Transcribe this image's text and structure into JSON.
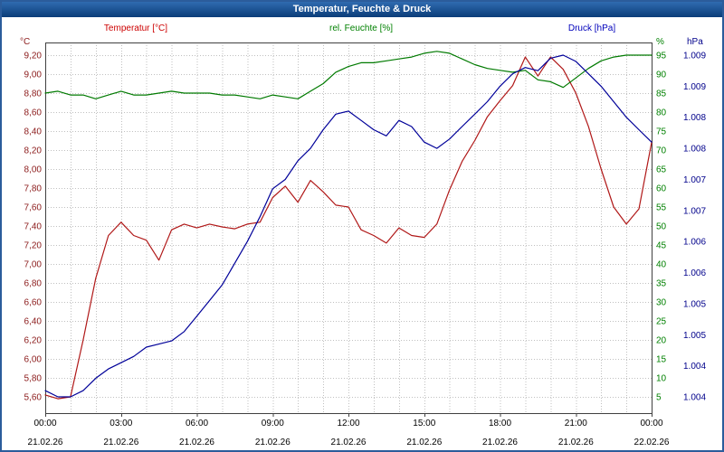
{
  "window": {
    "title": "Temperatur, Feuchte & Druck"
  },
  "legend": [
    {
      "label": "Temperatur [°C]",
      "color": "#cc0000"
    },
    {
      "label": "rel. Feuchte [%]",
      "color": "#008000"
    },
    {
      "label": "Druck [hPa]",
      "color": "#0000bb"
    }
  ],
  "chart_data": {
    "type": "line",
    "title": "Temperatur, Feuchte & Druck",
    "x_hours_step": 0.5,
    "x_range_hours": [
      0,
      24
    ],
    "grid": {
      "vertical_every_hours": 1,
      "horizontal_every_degC": 0.2,
      "style": "dotted"
    },
    "x_tick_labels": [
      "00:00",
      "03:00",
      "06:00",
      "09:00",
      "12:00",
      "15:00",
      "18:00",
      "21:00",
      "00:00"
    ],
    "x_date_labels": [
      "21.02.26",
      "21.02.26",
      "21.02.26",
      "21.02.26",
      "21.02.26",
      "21.02.26",
      "21.02.26",
      "21.02.26",
      "22.02.26"
    ],
    "axes": {
      "temp": {
        "unit": "°C",
        "side": "left",
        "top": 9.2,
        "bottom": 5.6,
        "color": "#8b1a1a",
        "tick_labels": [
          "9,20",
          "9,00",
          "8,80",
          "8,60",
          "8,40",
          "8,20",
          "8,00",
          "7,80",
          "7,60",
          "7,40",
          "7,20",
          "7,00",
          "6,80",
          "6,60",
          "6,40",
          "6,20",
          "6,00",
          "5,80",
          "5,60"
        ]
      },
      "hum": {
        "unit": "%",
        "side": "right-inner",
        "top": 95,
        "bottom": 5,
        "color": "#008000",
        "tick_labels": [
          "95",
          "90",
          "85",
          "80",
          "75",
          "70",
          "65",
          "60",
          "55",
          "50",
          "45",
          "40",
          "35",
          "30",
          "25",
          "20",
          "15",
          "10",
          "5"
        ]
      },
      "hpa": {
        "unit": "hPa",
        "side": "right-outer",
        "top": 1009.5,
        "bottom": 1004.0,
        "color": "#00008b",
        "tick_labels": [
          "1.009",
          "1.009",
          "1.008",
          "1.008",
          "1.007",
          "1.007",
          "1.006",
          "1.006",
          "1.005",
          "1.005",
          "1.004",
          "1.004"
        ]
      }
    },
    "series": [
      {
        "name": "Temperatur [°C]",
        "axis": "temp",
        "color": "#b01818",
        "values": [
          5.62,
          5.58,
          5.6,
          6.2,
          6.85,
          7.3,
          7.44,
          7.3,
          7.25,
          7.04,
          7.36,
          7.42,
          7.38,
          7.42,
          7.39,
          7.37,
          7.42,
          7.44,
          7.7,
          7.82,
          7.65,
          7.88,
          7.76,
          7.62,
          7.6,
          7.36,
          7.3,
          7.22,
          7.38,
          7.3,
          7.28,
          7.42,
          7.78,
          8.08,
          8.3,
          8.55,
          8.72,
          8.88,
          9.18,
          8.98,
          9.18,
          9.05,
          8.8,
          8.45,
          8.0,
          7.6,
          7.42,
          7.58,
          8.28
        ]
      },
      {
        "name": "rel. Feuchte [%]",
        "axis": "hum",
        "color": "#007a00",
        "values": [
          85.0,
          85.5,
          84.5,
          84.5,
          83.5,
          84.5,
          85.5,
          84.5,
          84.5,
          85.0,
          85.5,
          85.0,
          85.0,
          85.0,
          84.5,
          84.5,
          84.0,
          83.5,
          84.5,
          84.0,
          83.5,
          85.5,
          87.5,
          90.5,
          92.0,
          93.0,
          93.0,
          93.5,
          94.0,
          94.5,
          95.5,
          96.0,
          95.5,
          94.0,
          92.5,
          91.5,
          91.0,
          90.5,
          91.0,
          88.5,
          88.0,
          86.5,
          89.0,
          91.5,
          93.5,
          94.5,
          95.0,
          95.0,
          95.0
        ]
      },
      {
        "name": "Druck [hPa]",
        "axis": "hpa",
        "color": "#000099",
        "values": [
          1004.1,
          1004.0,
          1004.0,
          1004.1,
          1004.3,
          1004.45,
          1004.55,
          1004.65,
          1004.8,
          1004.85,
          1004.9,
          1005.05,
          1005.3,
          1005.55,
          1005.8,
          1006.15,
          1006.5,
          1006.9,
          1007.35,
          1007.5,
          1007.8,
          1008.0,
          1008.3,
          1008.55,
          1008.6,
          1008.45,
          1008.3,
          1008.2,
          1008.45,
          1008.35,
          1008.1,
          1008.0,
          1008.15,
          1008.35,
          1008.55,
          1008.75,
          1009.0,
          1009.2,
          1009.3,
          1009.25,
          1009.45,
          1009.5,
          1009.4,
          1009.2,
          1009.0,
          1008.75,
          1008.5,
          1008.3,
          1008.1
        ]
      }
    ]
  }
}
